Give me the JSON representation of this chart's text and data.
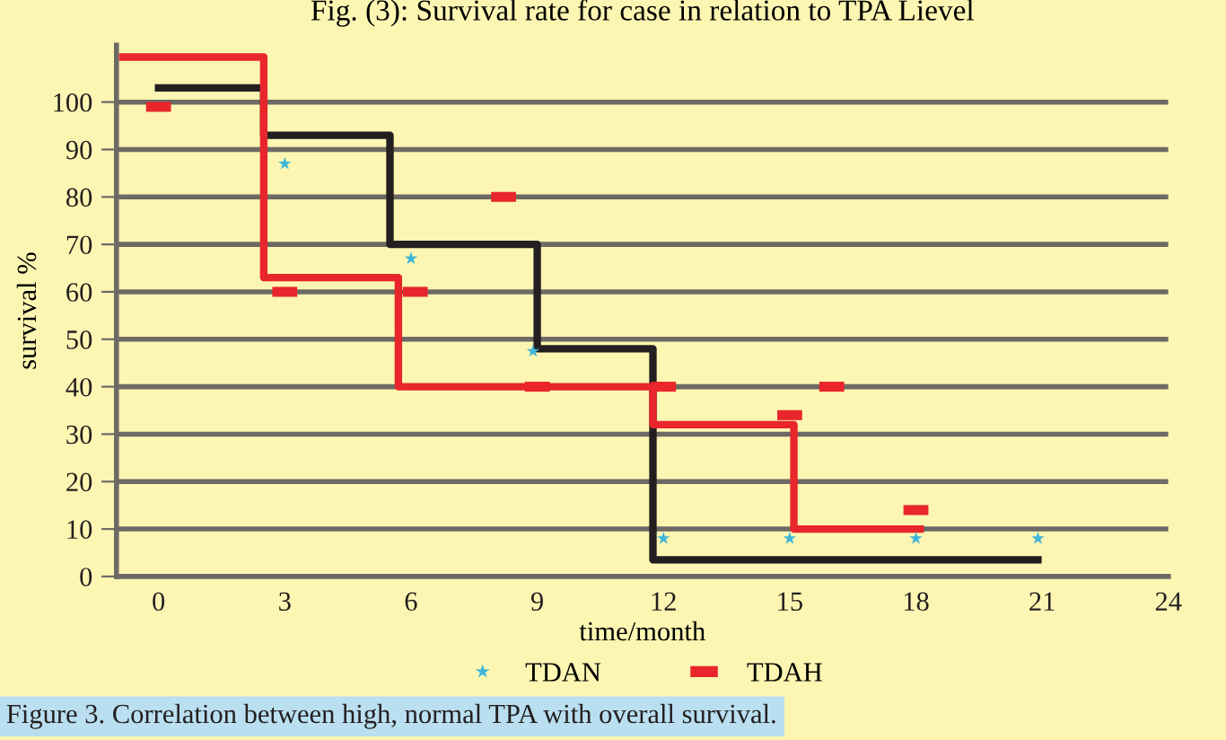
{
  "chart_data": {
    "type": "scatter",
    "title": "Fig. (3): Survival rate for case in relation to TPA Lievel",
    "xlabel": "time/month",
    "ylabel": "survival %",
    "annotations": [
      "Figure 3. Correlation between high, normal TPA with overall survival."
    ],
    "series": [
      {
        "type": "step",
        "color": "#231f20",
        "line_style": "solid",
        "x": [
          0,
          2.5,
          5.5,
          9.0,
          11.75,
          20.9
        ],
        "values": [
          103,
          93,
          70,
          48,
          3.5,
          3.5
        ]
      },
      {
        "type": "step",
        "color": "#e8262b",
        "line_style": "solid",
        "x": [
          -0.85,
          2.5,
          5.7,
          11.75,
          15.1,
          18.1
        ],
        "values": [
          109.5,
          63,
          40,
          32,
          10,
          10
        ]
      },
      {
        "name": "TDAN",
        "color": "#3fb6d8",
        "marker": "star",
        "x": [
          3.0,
          6.0,
          8.9,
          12.0,
          15.0,
          18.0,
          20.9
        ],
        "values": [
          87,
          67,
          47.5,
          8,
          8,
          8,
          8
        ]
      },
      {
        "name": "TDAH",
        "color": "#e8262b",
        "marker": "square",
        "x": [
          0,
          3.0,
          6.1,
          8.2,
          9.0,
          12.0,
          15.0,
          16.0,
          18.0
        ],
        "values": [
          99,
          60,
          60,
          80,
          40,
          40,
          34,
          40,
          14
        ]
      }
    ],
    "xlim": [
      -1,
      24
    ],
    "xticks": [
      0,
      3,
      6,
      9,
      12,
      15,
      18,
      21,
      24
    ],
    "ylim": [
      0,
      112
    ],
    "yticks": [
      0,
      10,
      20,
      30,
      40,
      50,
      60,
      70,
      80,
      90,
      100
    ],
    "grid": "y",
    "legend": "bottom"
  }
}
